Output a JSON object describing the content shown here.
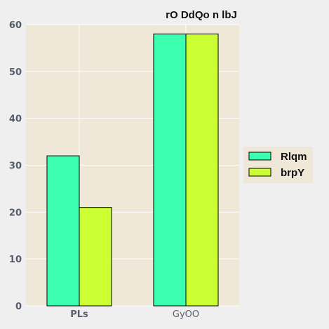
{
  "chart_data": {
    "type": "bar",
    "title": "rO DdQo n lbJ",
    "xlabel": "",
    "ylabel": "",
    "categories": [
      "PLs",
      "GyOO"
    ],
    "series": [
      {
        "name": "Rlqm",
        "values": [
          32,
          58
        ],
        "color": "#3dffb0"
      },
      {
        "name": "brpY",
        "values": [
          21,
          58
        ],
        "color": "#ccff33"
      }
    ],
    "ylim": [
      0,
      60
    ],
    "yticks": [
      0,
      10,
      20,
      30,
      40,
      50,
      60
    ],
    "grid": true,
    "legend_position": "right",
    "plot_background": "#efe8d8",
    "grid_color": "#ffffff",
    "bar_edge_color": "#000000"
  }
}
